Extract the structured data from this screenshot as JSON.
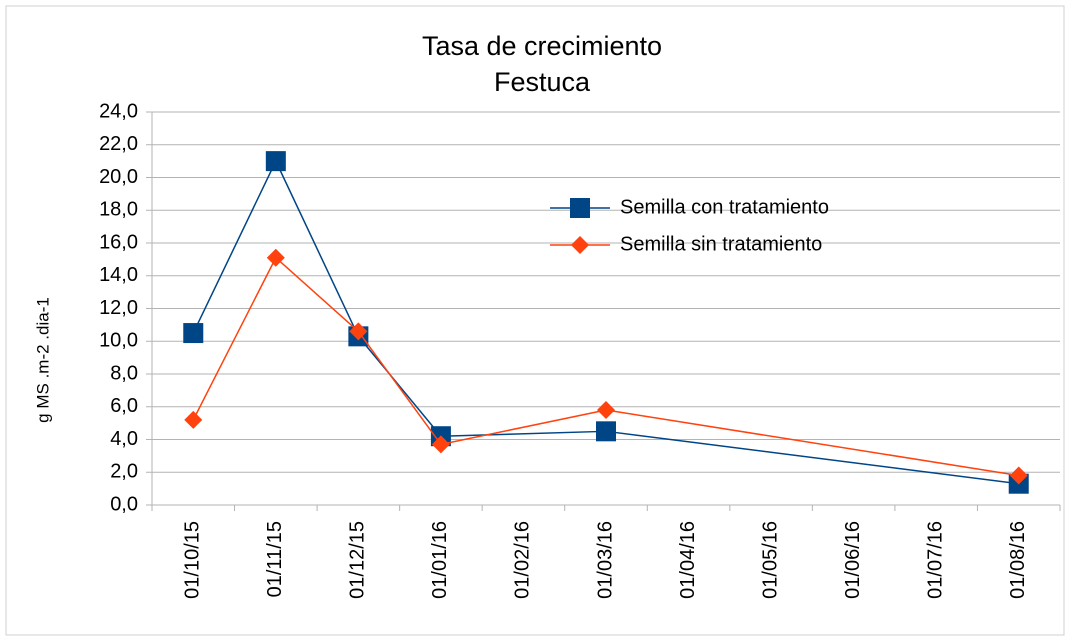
{
  "chart_data": {
    "type": "line",
    "title": "Tasa de crecimiento",
    "subtitle": "Festuca",
    "y_label": "g MS .m-2 .dia-1",
    "categories": [
      "01/10/15",
      "01/11/15",
      "01/12/15",
      "01/01/16",
      "01/02/16",
      "01/03/16",
      "01/04/16",
      "01/05/16",
      "01/06/16",
      "01/07/16",
      "01/08/16"
    ],
    "series": [
      {
        "name": "Semilla con tratamiento",
        "color": "#004586",
        "marker": "square",
        "values": [
          10.5,
          21.0,
          10.3,
          4.2,
          null,
          4.5,
          null,
          null,
          null,
          null,
          1.3
        ]
      },
      {
        "name": "Semilla sin tratamiento",
        "color": "#ff420e",
        "marker": "diamond",
        "values": [
          5.2,
          15.1,
          10.6,
          3.7,
          null,
          5.8,
          null,
          null,
          null,
          null,
          1.8
        ]
      }
    ],
    "connect_gaps": true,
    "ylim": [
      0,
      24
    ],
    "yticks": [
      {
        "value": 0,
        "label": "0,0"
      },
      {
        "value": 2,
        "label": "2,0"
      },
      {
        "value": 4,
        "label": "4,0"
      },
      {
        "value": 6,
        "label": "6,0"
      },
      {
        "value": 8,
        "label": "8,0"
      },
      {
        "value": 10,
        "label": "10,0"
      },
      {
        "value": 12,
        "label": "12,0"
      },
      {
        "value": 14,
        "label": "14,0"
      },
      {
        "value": 16,
        "label": "16,0"
      },
      {
        "value": 18,
        "label": "18,0"
      },
      {
        "value": 20,
        "label": "20,0"
      },
      {
        "value": 22,
        "label": "22,0"
      },
      {
        "value": 24,
        "label": "24,0"
      }
    ],
    "grid": true
  }
}
